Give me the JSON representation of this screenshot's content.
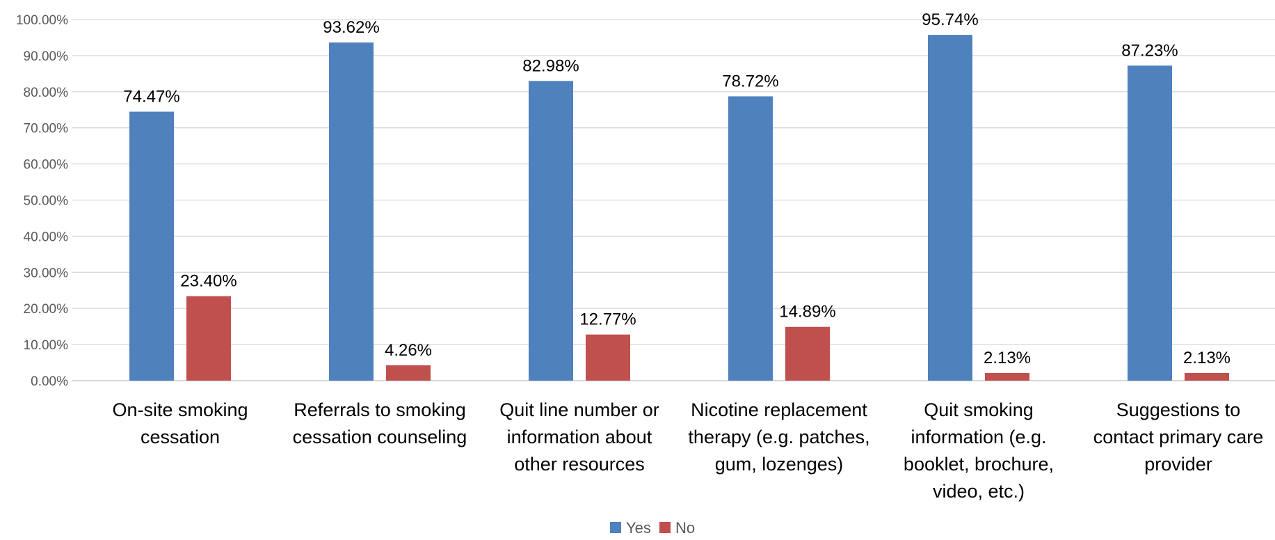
{
  "chart_data": {
    "type": "bar",
    "categories": [
      [
        "On-site smoking",
        "cessation"
      ],
      [
        "Referrals to smoking",
        "cessation counseling"
      ],
      [
        "Quit line number or",
        "information about",
        "other resources"
      ],
      [
        "Nicotine replacement",
        "therapy (e.g. patches,",
        "gum, lozenges)"
      ],
      [
        "Quit smoking",
        "information (e.g.",
        "booklet, brochure,",
        "video, etc.)"
      ],
      [
        "Suggestions to",
        "contact primary care",
        "provider"
      ]
    ],
    "series": [
      {
        "name": "Yes",
        "color": "#4f81bd",
        "values": [
          74.47,
          93.62,
          82.98,
          78.72,
          95.74,
          87.23
        ],
        "labels": [
          "74.47%",
          "93.62%",
          "82.98%",
          "78.72%",
          "95.74%",
          "87.23%"
        ]
      },
      {
        "name": "No",
        "color": "#c0504d",
        "values": [
          23.4,
          4.26,
          12.77,
          14.89,
          2.13,
          2.13
        ],
        "labels": [
          "23.40%",
          "4.26%",
          "12.77%",
          "14.89%",
          "2.13%",
          "2.13%"
        ]
      }
    ],
    "y_ticks": [
      "0.00%",
      "10.00%",
      "20.00%",
      "30.00%",
      "40.00%",
      "50.00%",
      "60.00%",
      "70.00%",
      "80.00%",
      "90.00%",
      "100.00%"
    ],
    "ylim": [
      0,
      100
    ],
    "grid": true,
    "legend_position": "bottom",
    "title": "",
    "xlabel": "",
    "ylabel": ""
  }
}
